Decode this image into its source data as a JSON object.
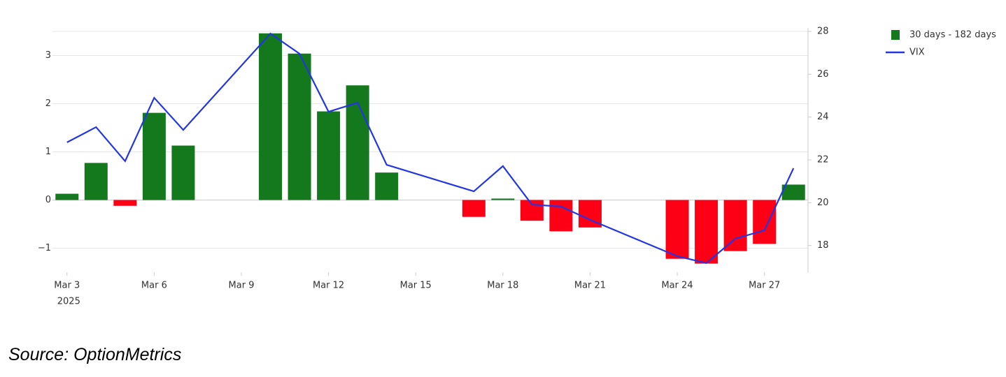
{
  "chart_data": {
    "type": "bar_line",
    "x": [
      "2025-03-03",
      "2025-03-04",
      "2025-03-05",
      "2025-03-06",
      "2025-03-07",
      "2025-03-10",
      "2025-03-11",
      "2025-03-12",
      "2025-03-13",
      "2025-03-14",
      "2025-03-17",
      "2025-03-18",
      "2025-03-19",
      "2025-03-20",
      "2025-03-21",
      "2025-03-24",
      "2025-03-25",
      "2025-03-26",
      "2025-03-27",
      "2025-03-28"
    ],
    "xlim": [
      "2025-03-02T12:00:00Z",
      "2025-03-28T12:00:00Z"
    ],
    "xticks": [
      {
        "value": "2025-03-03",
        "label": "Mar 3",
        "sublabel": "2025"
      },
      {
        "value": "2025-03-06",
        "label": "Mar 6"
      },
      {
        "value": "2025-03-09",
        "label": "Mar 9"
      },
      {
        "value": "2025-03-12",
        "label": "Mar 12"
      },
      {
        "value": "2025-03-15",
        "label": "Mar 15"
      },
      {
        "value": "2025-03-18",
        "label": "Mar 18"
      },
      {
        "value": "2025-03-21",
        "label": "Mar 21"
      },
      {
        "value": "2025-03-24",
        "label": "Mar 24"
      },
      {
        "value": "2025-03-27",
        "label": "Mar 27"
      }
    ],
    "series": [
      {
        "name": "30 days - 182 days",
        "type": "bar",
        "color": "#13791c",
        "negative_color": "#fe0016",
        "values": [
          0.13,
          0.77,
          -0.12,
          1.81,
          1.13,
          3.46,
          3.04,
          1.84,
          2.38,
          0.57,
          -0.35,
          0.03,
          -0.43,
          -0.65,
          -0.57,
          -1.22,
          -1.32,
          -1.06,
          -0.91,
          0.32
        ]
      },
      {
        "name": "VIX",
        "type": "line",
        "axis": "y2",
        "color": "#2336e0",
        "values": [
          22.82,
          23.53,
          21.94,
          24.9,
          23.4,
          27.9,
          26.96,
          24.25,
          24.67,
          21.77,
          20.53,
          21.71,
          19.91,
          19.82,
          19.2,
          17.5,
          17.18,
          18.32,
          18.71,
          21.61
        ]
      }
    ],
    "ylim": [
      -1.5,
      3.5
    ],
    "yticks": [
      {
        "value": -1,
        "label": "−1"
      },
      0,
      1,
      2,
      3
    ],
    "y2lim": [
      16.75,
      28
    ],
    "y2ticks": [
      18,
      20,
      22,
      24,
      26,
      28
    ],
    "grid": true,
    "legend": "top-right",
    "source": "Source: OptionMetrics"
  }
}
